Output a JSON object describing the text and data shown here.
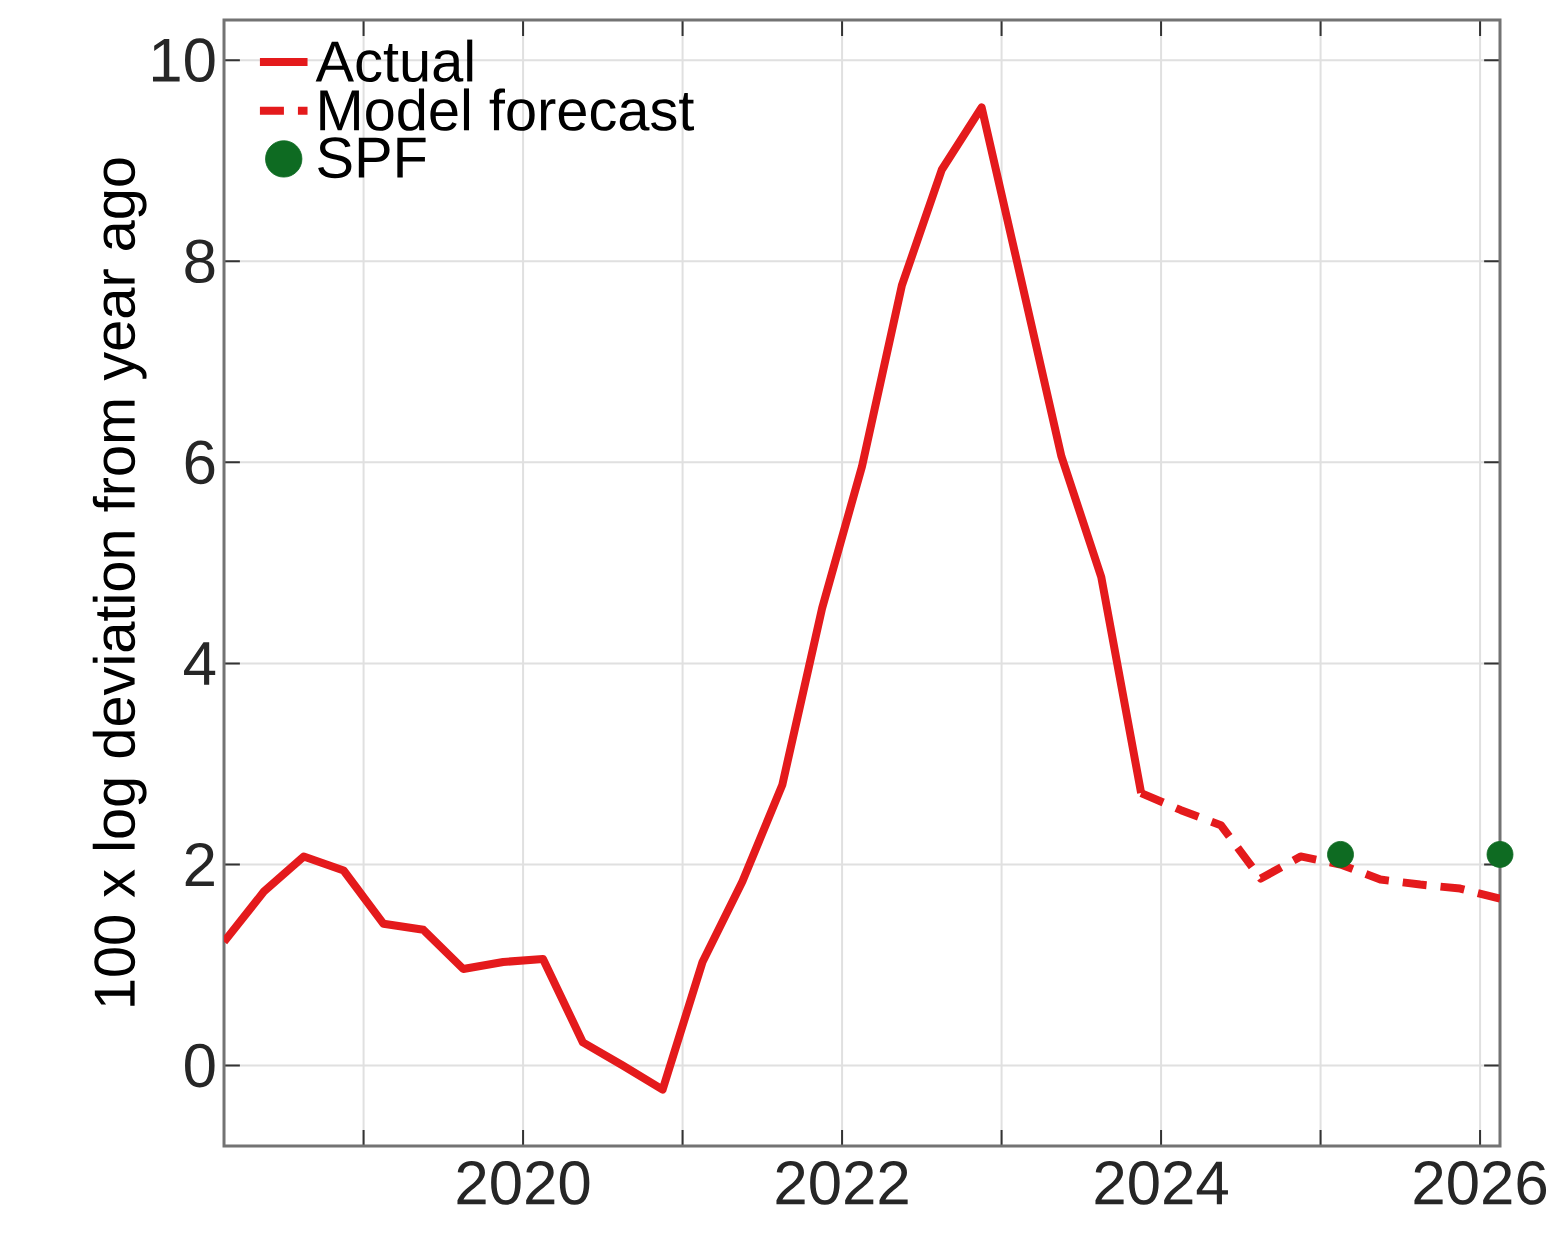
{
  "chart_data": {
    "type": "line",
    "ylabel": "100 x log deviation from year ago",
    "xlim": [
      2018.125,
      2026.125
    ],
    "ylim": [
      -0.8,
      10.4
    ],
    "xticks": [
      {
        "value": 2019,
        "label": null
      },
      2020,
      {
        "value": 2021,
        "label": null
      },
      2022,
      {
        "value": 2023,
        "label": null
      },
      2024,
      {
        "value": 2025,
        "label": null
      },
      2026
    ],
    "yticks": [
      0,
      2,
      4,
      6,
      8,
      10
    ],
    "grid": true,
    "legend": "top left",
    "series": [
      {
        "name": "Actual",
        "color": "#e41a1c",
        "line_style": "solid",
        "marker": "none",
        "x": [
          2018.125,
          2018.375,
          2018.625,
          2018.875,
          2019.125,
          2019.375,
          2019.625,
          2019.875,
          2020.125,
          2020.375,
          2020.625,
          2020.875,
          2021.125,
          2021.375,
          2021.625,
          2021.875,
          2022.125,
          2022.375,
          2022.625,
          2022.875,
          2023.125,
          2023.375,
          2023.625,
          2023.875
        ],
        "values": [
          1.23,
          1.73,
          2.08,
          1.94,
          1.41,
          1.35,
          0.96,
          1.03,
          1.06,
          0.23,
          0.0,
          -0.24,
          1.03,
          1.83,
          2.79,
          4.55,
          5.96,
          7.76,
          8.91,
          9.53,
          7.8,
          6.06,
          4.86,
          2.71
        ]
      },
      {
        "name": "Model forecast",
        "color": "#e41a1c",
        "line_style": "dashed",
        "marker": "none",
        "x": [
          2023.875,
          2024.125,
          2024.375,
          2024.625,
          2024.875,
          2025.125,
          2025.375,
          2025.625,
          2025.875,
          2026.125
        ],
        "values": [
          2.71,
          2.54,
          2.39,
          1.86,
          2.08,
          2.0,
          1.85,
          1.8,
          1.76,
          1.66
        ]
      },
      {
        "name": "SPF",
        "type": "scatter",
        "color": "#0e6b22",
        "marker": "circle",
        "x": [
          2025.125,
          2026.125
        ],
        "values": [
          2.1,
          2.1
        ]
      }
    ]
  }
}
